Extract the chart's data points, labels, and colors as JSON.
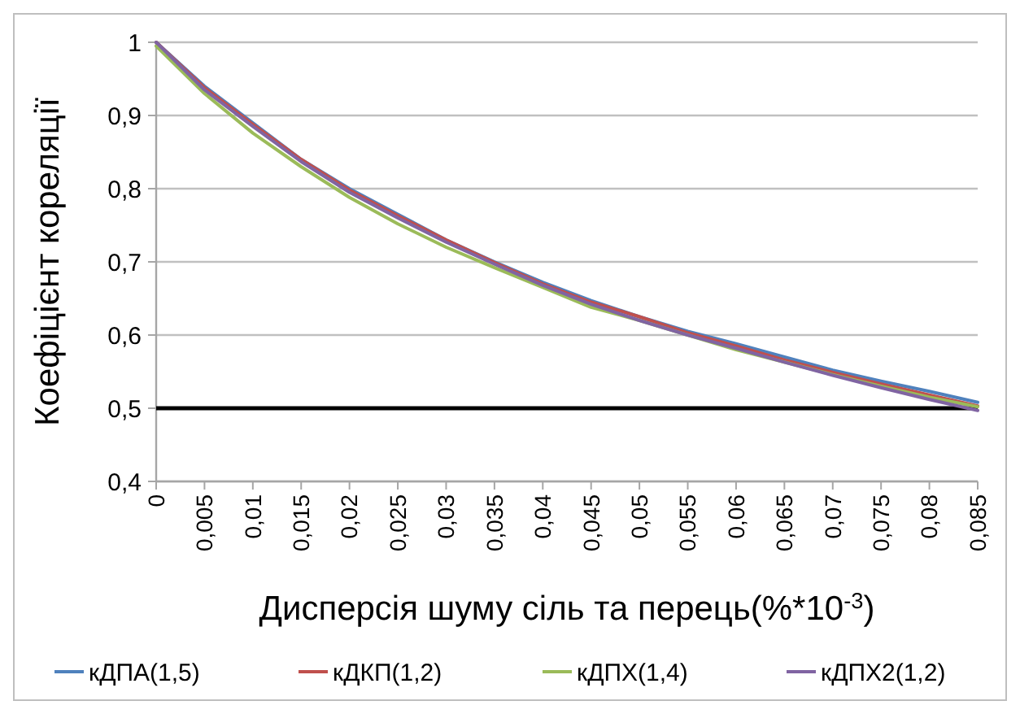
{
  "chart_data": {
    "type": "line",
    "xlabel": "Дисперсія шуму сіль та перець(%*10$^{-3}$)",
    "ylabel": "Коефіцієнт кореляції",
    "x": [
      0,
      0.005,
      0.01,
      0.015,
      0.02,
      0.025,
      0.03,
      0.035,
      0.04,
      0.045,
      0.05,
      0.055,
      0.06,
      0.065,
      0.07,
      0.075,
      0.08,
      0.085
    ],
    "series": [
      {
        "name": "кДПА(1,5)",
        "color": "#4f81bd",
        "values": [
          1.0,
          0.94,
          0.89,
          0.84,
          0.8,
          0.765,
          0.73,
          0.7,
          0.672,
          0.647,
          0.625,
          0.605,
          0.588,
          0.57,
          0.552,
          0.537,
          0.523,
          0.508
        ]
      },
      {
        "name": "кДКП(1,2)",
        "color": "#c0504d",
        "values": [
          1.0,
          0.938,
          0.888,
          0.84,
          0.798,
          0.763,
          0.73,
          0.699,
          0.67,
          0.645,
          0.625,
          0.603,
          0.585,
          0.566,
          0.549,
          0.533,
          0.518,
          0.503
        ]
      },
      {
        "name": "кДПХ(1,4)",
        "color": "#9bbb59",
        "values": [
          0.995,
          0.93,
          0.876,
          0.83,
          0.788,
          0.752,
          0.72,
          0.692,
          0.665,
          0.638,
          0.62,
          0.6,
          0.58,
          0.563,
          0.546,
          0.53,
          0.515,
          0.502
        ]
      },
      {
        "name": "кДПХ2(1,2)",
        "color": "#8064a2",
        "values": [
          1.0,
          0.935,
          0.885,
          0.837,
          0.795,
          0.76,
          0.727,
          0.697,
          0.668,
          0.642,
          0.62,
          0.6,
          0.582,
          0.563,
          0.545,
          0.528,
          0.512,
          0.497
        ]
      }
    ],
    "xlim": [
      0,
      0.085
    ],
    "xticks": [
      {
        "value": 0,
        "label": "0"
      },
      {
        "value": 0.005,
        "label": "0,005"
      },
      {
        "value": 0.01,
        "label": "0,01"
      },
      {
        "value": 0.015,
        "label": "0,015"
      },
      {
        "value": 0.02,
        "label": "0,02"
      },
      {
        "value": 0.025,
        "label": "0,025"
      },
      {
        "value": 0.03,
        "label": "0,03"
      },
      {
        "value": 0.035,
        "label": "0,035"
      },
      {
        "value": 0.04,
        "label": "0,04"
      },
      {
        "value": 0.045,
        "label": "0,045"
      },
      {
        "value": 0.05,
        "label": "0,05"
      },
      {
        "value": 0.055,
        "label": "0,055"
      },
      {
        "value": 0.06,
        "label": "0,06"
      },
      {
        "value": 0.065,
        "label": "0,065"
      },
      {
        "value": 0.07,
        "label": "0,07"
      },
      {
        "value": 0.075,
        "label": "0,075"
      },
      {
        "value": 0.08,
        "label": "0,08"
      },
      {
        "value": 0.085,
        "label": "0,085"
      }
    ],
    "ylim": [
      0.4,
      1
    ],
    "yticks": [
      {
        "value": 0.4,
        "label": "0,4"
      },
      {
        "value": 0.5,
        "label": "0,5"
      },
      {
        "value": 0.6,
        "label": "0,6"
      },
      {
        "value": 0.7,
        "label": "0,7"
      },
      {
        "value": 0.8,
        "label": "0,8"
      },
      {
        "value": 0.9,
        "label": "0,9"
      },
      {
        "value": 1,
        "label": "1"
      }
    ],
    "ref_lines": [
      {
        "axis": "y",
        "value": 0.5,
        "label": null,
        "color": "#000000"
      }
    ],
    "grid": "y",
    "legend": "bottom",
    "marker": "none",
    "line_style": "solid"
  }
}
